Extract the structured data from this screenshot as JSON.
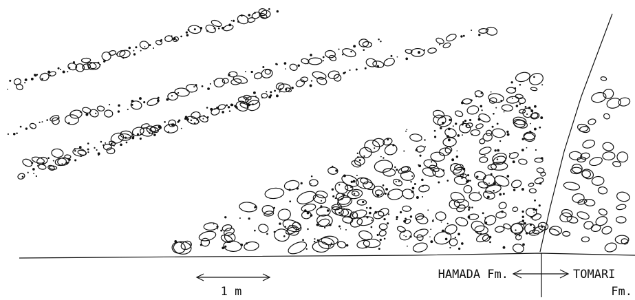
{
  "scale": {
    "label": "1 m"
  },
  "formations": {
    "left": "HAMADA Fm.",
    "right": {
      "line1": "TOMARI",
      "line2": "Fm."
    }
  }
}
